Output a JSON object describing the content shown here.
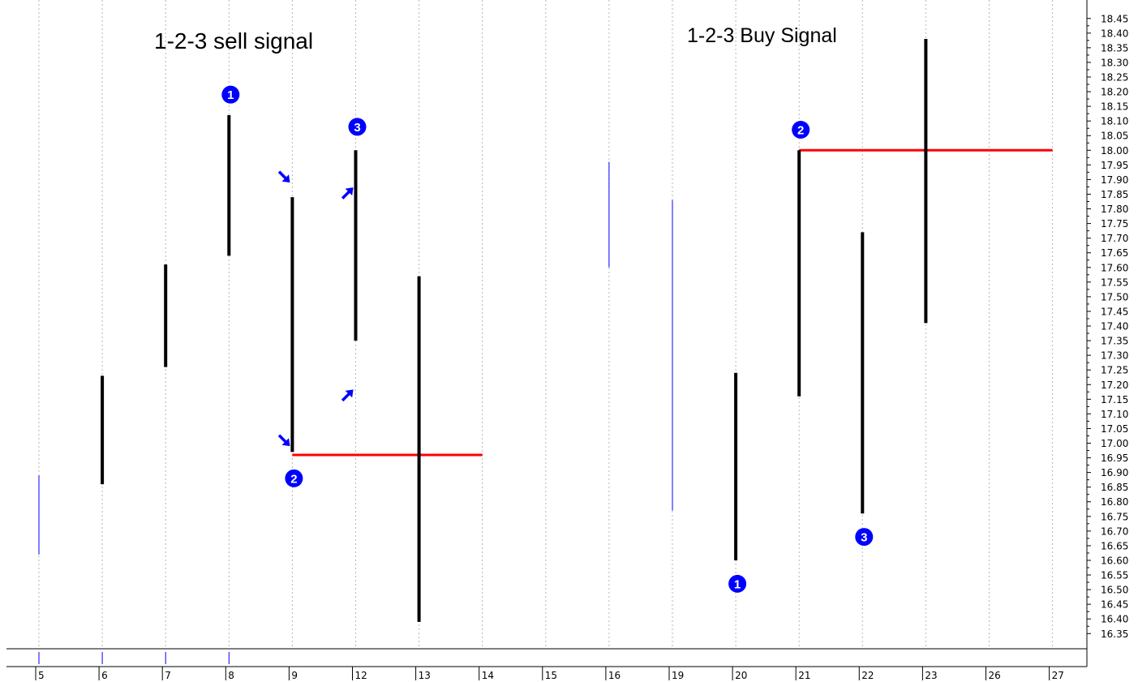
{
  "chart_data": {
    "type": "bar",
    "subtype": "high-low price bars",
    "title_left": "1-2-3 sell signal",
    "title_right": "1-2-3 Buy Signal",
    "x_categories": [
      "5",
      "6",
      "7",
      "8",
      "9",
      "12",
      "13",
      "14",
      "15",
      "16",
      "19",
      "20",
      "21",
      "22",
      "23",
      "26",
      "27"
    ],
    "y_ticks": [
      "16.35",
      "16.40",
      "16.45",
      "16.50",
      "16.55",
      "16.60",
      "16.65",
      "16.70",
      "16.75",
      "16.80",
      "16.85",
      "16.90",
      "16.95",
      "17.00",
      "17.05",
      "17.10",
      "17.15",
      "17.20",
      "17.25",
      "17.30",
      "17.35",
      "17.40",
      "17.45",
      "17.50",
      "17.55",
      "17.60",
      "17.65",
      "17.70",
      "17.75",
      "17.80",
      "17.85",
      "17.90",
      "17.95",
      "18.00",
      "18.05",
      "18.10",
      "18.15",
      "18.20",
      "18.25",
      "18.30",
      "18.35",
      "18.40",
      "18.45"
    ],
    "ylim": [
      16.32,
      18.47
    ],
    "grid": "vertical dotted",
    "bars": [
      {
        "x": "5",
        "low": 16.62,
        "high": 16.89,
        "color": "#0000ff",
        "style": "thin"
      },
      {
        "x": "6",
        "low": 16.86,
        "high": 17.23,
        "color": "#000000",
        "style": "thick"
      },
      {
        "x": "7",
        "low": 17.26,
        "high": 17.61,
        "color": "#000000",
        "style": "thick"
      },
      {
        "x": "8",
        "low": 17.64,
        "high": 18.12,
        "color": "#000000",
        "style": "thick"
      },
      {
        "x": "9",
        "low": 16.97,
        "high": 17.84,
        "color": "#000000",
        "style": "thick"
      },
      {
        "x": "12",
        "low": 17.35,
        "high": 18.0,
        "color": "#000000",
        "style": "thick"
      },
      {
        "x": "13",
        "low": 16.39,
        "high": 17.57,
        "color": "#000000",
        "style": "thick"
      },
      {
        "x": "16",
        "low": 17.6,
        "high": 17.96,
        "color": "#0000ff",
        "style": "thin"
      },
      {
        "x": "19",
        "low": 16.77,
        "high": 17.83,
        "color": "#0000ff",
        "style": "thin"
      },
      {
        "x": "20",
        "low": 16.6,
        "high": 17.24,
        "color": "#000000",
        "style": "thick"
      },
      {
        "x": "21",
        "low": 17.16,
        "high": 18.0,
        "color": "#000000",
        "style": "thick"
      },
      {
        "x": "22",
        "low": 16.76,
        "high": 17.72,
        "color": "#000000",
        "style": "thick"
      },
      {
        "x": "23",
        "low": 17.41,
        "high": 18.38,
        "color": "#000000",
        "style": "thick"
      }
    ],
    "horizontal_lines": [
      {
        "from": "9",
        "to": "14",
        "y": 16.96,
        "color": "#ff0000"
      },
      {
        "from": "21",
        "to": "27",
        "y": 18.0,
        "color": "#ff0000"
      }
    ],
    "markers": [
      {
        "label": "1",
        "x": "8",
        "y": 18.19
      },
      {
        "label": "2",
        "x": "9",
        "y": 16.88
      },
      {
        "label": "3",
        "x": "12",
        "y": 18.08
      },
      {
        "label": "1",
        "x": "20",
        "y": 16.52
      },
      {
        "label": "2",
        "x": "21",
        "y": 18.07
      },
      {
        "label": "3",
        "x": "22",
        "y": 16.68
      }
    ],
    "arrows": [
      {
        "x": "9",
        "y": 17.89,
        "dir": "down-right"
      },
      {
        "x": "9",
        "y": 16.99,
        "dir": "down-right"
      },
      {
        "x": "12",
        "y": 17.87,
        "dir": "up-right"
      },
      {
        "x": "12",
        "y": 17.18,
        "dir": "up-right"
      }
    ],
    "volume_ticks": [
      "5",
      "6",
      "7",
      "8"
    ]
  }
}
